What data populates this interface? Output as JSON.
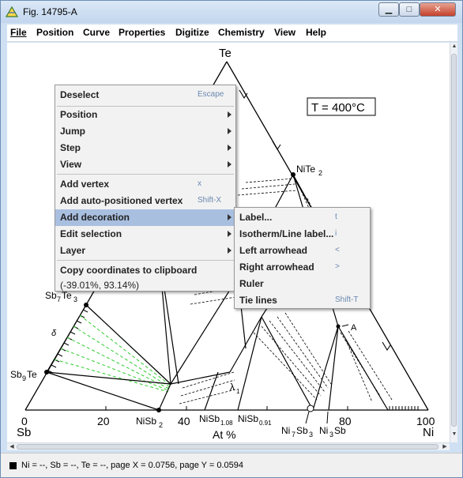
{
  "window": {
    "title": "Fig. 14795-A",
    "close_glyph": "✕"
  },
  "menubar": [
    "File",
    "Position",
    "Curve",
    "Properties",
    "Digitize",
    "Chemistry",
    "View",
    "Help"
  ],
  "figure": {
    "apex_label": "Te",
    "left_corner_label": "Sb",
    "right_corner_label": "Ni",
    "axis_caption": "At %",
    "ticks": [
      "0",
      "20",
      "40",
      "80",
      "100"
    ],
    "temperature_box": "T = 400°C",
    "phase_labels": {
      "nite2": "NiTe",
      "nite2_sub": "2",
      "sb7te3": "Sb",
      "sb7te3_s1": "7",
      "sb7te3_mid": "Te",
      "sb7te3_s2": "3",
      "sb9te": "Sb",
      "sb9te_s1": "9",
      "sb9te_mid": "Te",
      "delta": "δ",
      "lambda": "λ",
      "lambda_sub": "1",
      "a_point": "A",
      "nisb2": "NiSb",
      "nisb2_sub": "2",
      "nisb108": "NiSb",
      "nisb108_sub": "1.08",
      "nisb091": "NiSb",
      "nisb091_sub": "0.91",
      "ni7sb3": "Ni",
      "ni7sb3_s1": "7",
      "ni7sb3_mid": "Sb",
      "ni7sb3_s2": "3",
      "ni3sb": "Ni",
      "ni3sb_s1": "3",
      "ni3sb_mid": "Sb"
    }
  },
  "context_menu": {
    "deselect": {
      "label": "Deselect",
      "shortcut": "Escape"
    },
    "position": "Position",
    "jump": "Jump",
    "step": "Step",
    "view": "View",
    "add_vertex": {
      "label": "Add vertex",
      "shortcut": "x"
    },
    "add_auto_vertex": {
      "label": "Add auto-positioned vertex",
      "shortcut": "Shift-X"
    },
    "add_decoration": "Add decoration",
    "edit_selection": "Edit selection",
    "layer": "Layer",
    "copy_coords": "Copy coordinates to clipboard",
    "coords_value": "(-39.01%, 93.14%)"
  },
  "submenu": {
    "label": {
      "label": "Label...",
      "shortcut": "t"
    },
    "isotherm": {
      "label": "Isotherm/Line label...",
      "shortcut": "i"
    },
    "left_arrowhead": {
      "label": "Left arrowhead",
      "shortcut": "<"
    },
    "right_arrowhead": {
      "label": "Right arrowhead",
      "shortcut": ">"
    },
    "ruler": {
      "label": "Ruler"
    },
    "tie_lines": {
      "label": "Tie lines",
      "shortcut": "Shift-T"
    }
  },
  "statusbar": {
    "text": "Ni = --, Sb = --, Te = --, page X = 0.0756, page Y = 0.0594"
  },
  "colors": {
    "highlight": "#a9bfe0",
    "tie_line_green": "#2ecc2e",
    "shortcut_text": "#6a88b0"
  }
}
